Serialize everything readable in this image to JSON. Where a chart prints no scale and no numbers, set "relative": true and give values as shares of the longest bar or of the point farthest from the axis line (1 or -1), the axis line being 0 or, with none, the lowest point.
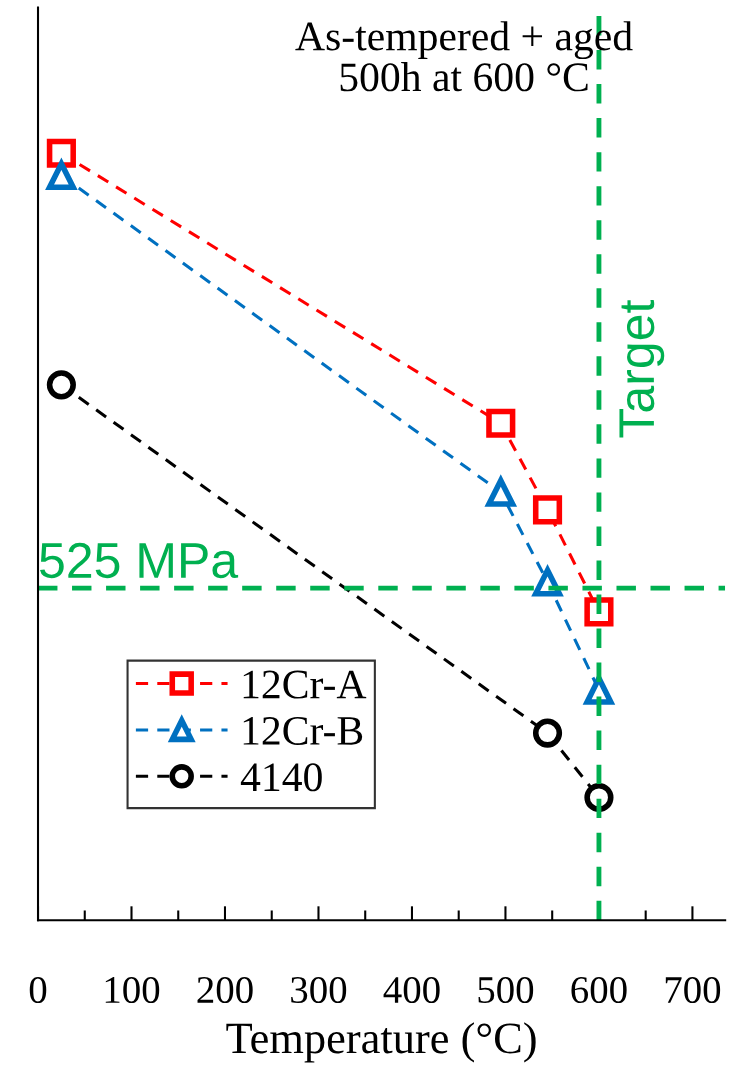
{
  "chart_data": {
    "type": "line",
    "title": "As-tempered + aged\n500h at 600 °C",
    "xlabel": "Temperature (°C)",
    "relative": true,
    "line_style": "dashed",
    "legend": "bottom left",
    "grid": false,
    "xlim": [
      0,
      735
    ],
    "xticks": [
      0,
      {
        "value": 50,
        "label": null
      },
      100,
      {
        "value": 150,
        "label": null
      },
      200,
      {
        "value": 250,
        "label": null
      },
      300,
      {
        "value": 350,
        "label": null
      },
      400,
      {
        "value": 450,
        "label": null
      },
      500,
      {
        "value": 550,
        "label": null
      },
      600,
      {
        "value": 650,
        "label": null
      },
      700
    ],
    "series": [
      {
        "name": "12Cr-A",
        "color": "#ff0000",
        "marker": "square",
        "x": [
          25,
          495,
          545,
          600
        ],
        "values": [
          1.0,
          0.648,
          0.535,
          0.402
        ]
      },
      {
        "name": "12Cr-B",
        "color": "#0070c0",
        "marker": "triangle",
        "x": [
          25,
          495,
          545,
          600
        ],
        "values": [
          0.971,
          0.558,
          0.441,
          0.3
        ]
      },
      {
        "name": "4140",
        "color": "#000000",
        "marker": "circle",
        "x": [
          25,
          545,
          600
        ],
        "values": [
          0.698,
          0.244,
          0.16
        ]
      }
    ],
    "ref_lines": [
      {
        "axis": "y",
        "value": 0.433,
        "label": "525 MPa",
        "color": "#00b050",
        "line_style": "dashed"
      },
      {
        "axis": "x",
        "value": 600,
        "label": "Target",
        "color": "#00b050",
        "line_style": "dashed"
      }
    ]
  }
}
